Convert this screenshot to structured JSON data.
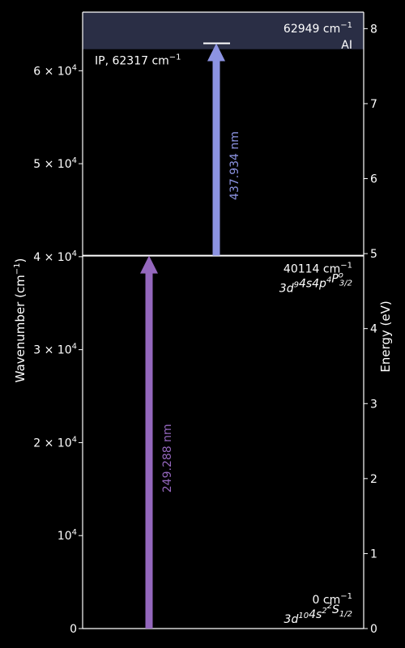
{
  "chart_data": {
    "type": "energy-level-diagram",
    "left_axis": {
      "label_main": "Wavenumber (cm",
      "label_sup": "−1",
      "label_end": ")",
      "range": [
        0,
        66300
      ],
      "ticks": [
        {
          "value": 0,
          "label": "0",
          "sup": ""
        },
        {
          "value": 10000,
          "label": "10",
          "sup": "4"
        },
        {
          "value": 20000,
          "label": "2 × 10",
          "sup": "4"
        },
        {
          "value": 30000,
          "label": "3 × 10",
          "sup": "4"
        },
        {
          "value": 40000,
          "label": "4 × 10",
          "sup": "4"
        },
        {
          "value": 50000,
          "label": "5 × 10",
          "sup": "4"
        },
        {
          "value": 60000,
          "label": "6 × 10",
          "sup": "4"
        }
      ]
    },
    "right_axis": {
      "label": "Energy (eV)",
      "range": [
        0,
        8.22
      ],
      "ticks": [
        {
          "value": 0,
          "label": "0"
        },
        {
          "value": 1,
          "label": "1"
        },
        {
          "value": 2,
          "label": "2"
        },
        {
          "value": 3,
          "label": "3"
        },
        {
          "value": 4,
          "label": "4"
        },
        {
          "value": 5,
          "label": "5"
        },
        {
          "value": 6,
          "label": "6"
        },
        {
          "value": 7,
          "label": "7"
        },
        {
          "value": 8,
          "label": "8"
        }
      ]
    },
    "levels": [
      {
        "wavenumber": 0,
        "value_text": "0 cm",
        "value_sup": "−1",
        "config_parts": [
          {
            "t": "3d",
            "s": "10"
          },
          {
            "t": "4s",
            "s": "2"
          },
          {
            "t": "S",
            "s": "",
            "i": "1/2"
          }
        ],
        "pre_sup": [
          "",
          "",
          "2"
        ]
      },
      {
        "wavenumber": 40114,
        "value_text": "40114 cm",
        "value_sup": "−1",
        "config_parts": [
          {
            "t": "3d",
            "s": "9"
          },
          {
            "t": "4s4p",
            "s": "4"
          },
          {
            "t": "P",
            "s": "o",
            "i": "3/2"
          }
        ]
      },
      {
        "wavenumber": 62949,
        "value_text": "62949 cm",
        "value_sup": "−1",
        "extra_label": "AI"
      }
    ],
    "ionization": {
      "wavenumber": 62317,
      "label_text": "IP, 62317 cm",
      "label_sup": "−1"
    },
    "transitions": [
      {
        "from": 0,
        "to": 40114,
        "label": "249.288 nm",
        "color": "#9467bd"
      },
      {
        "from": 40114,
        "to": 62949,
        "label": "437.934 nm",
        "color": "#8c93e2"
      }
    ],
    "colors": {
      "background": "#000000",
      "foreground": "#ffffff",
      "ionization_band": "#2a2e45"
    }
  }
}
